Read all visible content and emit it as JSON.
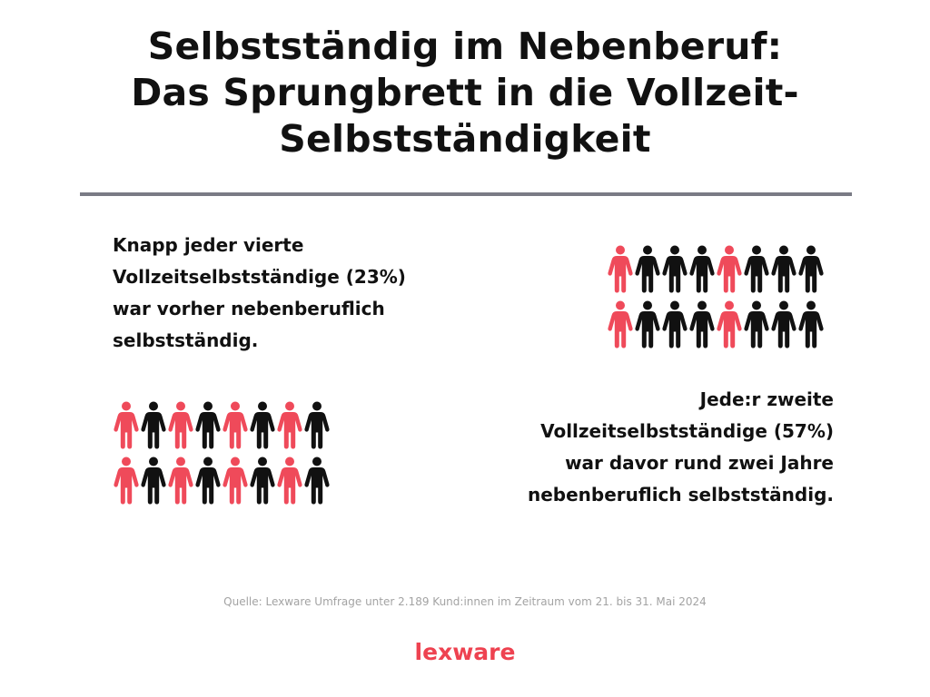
{
  "title": {
    "line1": "Selbstständig im Nebenberuf:",
    "line2": "Das Sprungbrett in die Vollzeit-",
    "line3": "Selbstständigkeit"
  },
  "stat_23": {
    "lines": [
      "Knapp jeder vierte",
      "Vollzeitselbstständige (23%)",
      "war vorher nebenberuflich",
      "selbstständig."
    ],
    "highlighted_fraction": 0.25
  },
  "stat_57": {
    "lines": [
      "Jede:r zweite",
      "Vollzeitselbstständige (57%)",
      "war davor rund zwei Jahre",
      "nebenberuflich selbstständig."
    ],
    "highlighted_fraction": 0.5
  },
  "source": "Quelle: Lexware Umfrage unter 2.189 Kund:innen im Zeitraum vom 21. bis 31. Mai 2024",
  "logo": "Lexware",
  "colors": {
    "highlight": "#ef4a5a",
    "figure": "#111111",
    "divider": "#7a7b85",
    "source_text": "#a3a3a3",
    "logo": "#ee4250"
  },
  "icons": {
    "figure": "person-icon"
  }
}
